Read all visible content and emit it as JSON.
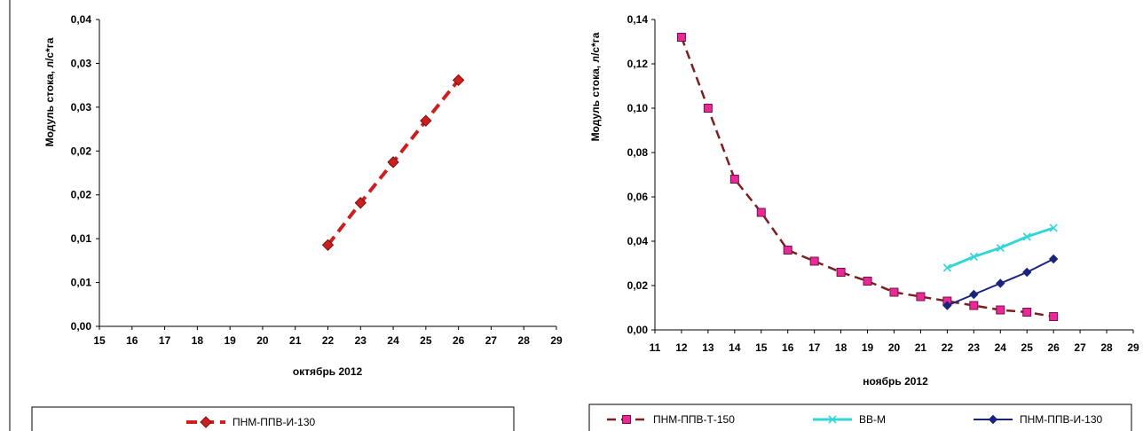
{
  "colors": {
    "series_left": "#CC1F1F",
    "series_dark_red": "#7B1F1F",
    "marker_magenta": "#E8299A",
    "series_cyan": "#33D6D6",
    "series_navy": "#1A237E"
  },
  "chart_data": [
    {
      "type": "line",
      "title": "",
      "xlabel": "октябрь 2012",
      "ylabel": "Модуль стока, л/с*га",
      "xlim": [
        15,
        29
      ],
      "ylim": [
        0,
        0.04
      ],
      "x_ticks": [
        "15",
        "16",
        "17",
        "18",
        "19",
        "20",
        "21",
        "22",
        "23",
        "24",
        "25",
        "26",
        "27",
        "28",
        "29"
      ],
      "y_ticks": [
        "0,00",
        "0,01",
        "0,01",
        "0,02",
        "0,02",
        "0,03",
        "0,03",
        "0,04"
      ],
      "grid": false,
      "legend_position": "bottom",
      "series": [
        {
          "name": "ПНМ-ППВ-И-130",
          "marker": "diamond",
          "line_style": "dashed",
          "x": [
            22,
            23,
            24,
            25,
            26
          ],
          "y": [
            0.0106,
            0.0161,
            0.0214,
            0.0268,
            0.0321
          ]
        }
      ]
    },
    {
      "type": "line",
      "title": "",
      "xlabel": "ноябрь 2012",
      "ylabel": "Модуль стока, л/с*га",
      "xlim": [
        11,
        29
      ],
      "ylim": [
        0,
        0.14
      ],
      "x_ticks": [
        "11",
        "12",
        "13",
        "14",
        "15",
        "16",
        "17",
        "18",
        "19",
        "20",
        "21",
        "22",
        "23",
        "24",
        "25",
        "26",
        "27",
        "28",
        "29"
      ],
      "y_ticks": [
        "0,00",
        "0,02",
        "0,04",
        "0,06",
        "0,08",
        "0,10",
        "0,12",
        "0,14"
      ],
      "grid": false,
      "legend_position": "bottom",
      "series": [
        {
          "name": "ПНМ-ППВ-Т-150",
          "marker": "square",
          "line_style": "dashed",
          "x": [
            12,
            13,
            14,
            15,
            16,
            17,
            18,
            19,
            20,
            21,
            22,
            23,
            24,
            25,
            26
          ],
          "y": [
            0.132,
            0.1,
            0.068,
            0.053,
            0.036,
            0.031,
            0.026,
            0.022,
            0.017,
            0.015,
            0.013,
            0.011,
            0.009,
            0.008,
            0.006
          ]
        },
        {
          "name": "ВВ-М",
          "marker": "x",
          "line_style": "solid",
          "x": [
            22,
            23,
            24,
            25,
            26
          ],
          "y": [
            0.028,
            0.033,
            0.037,
            0.042,
            0.046
          ]
        },
        {
          "name": "ПНМ-ППВ-И-130",
          "marker": "diamond",
          "line_style": "solid",
          "x": [
            22,
            23,
            24,
            25,
            26
          ],
          "y": [
            0.011,
            0.016,
            0.021,
            0.026,
            0.032
          ]
        }
      ]
    }
  ]
}
